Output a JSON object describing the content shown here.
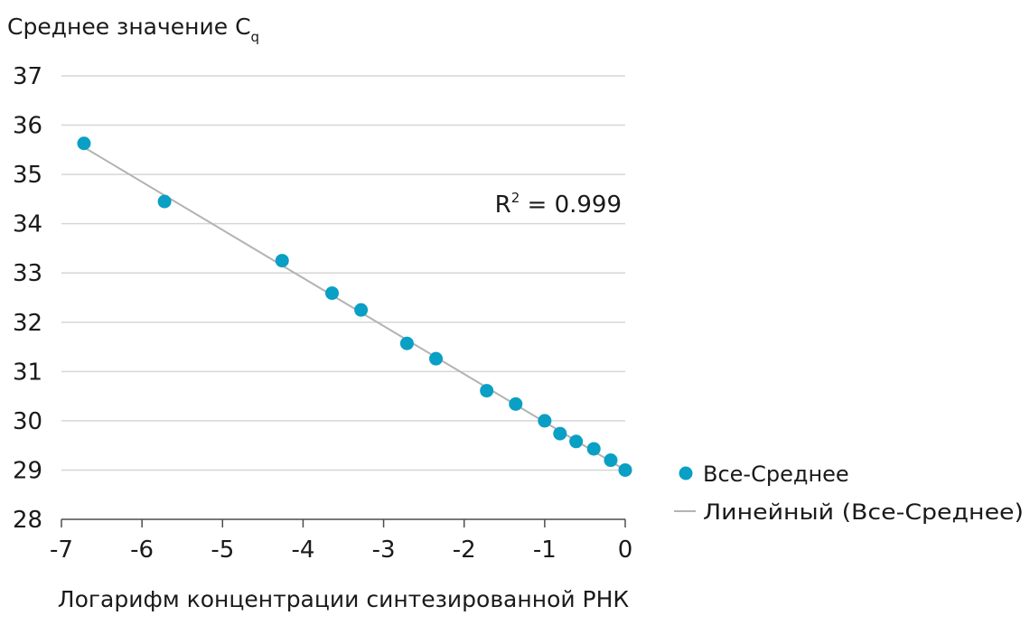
{
  "chart_data": {
    "type": "scatter",
    "ylabel": "Среднее значение C",
    "ylabel_subscript": "q",
    "xlabel": "Логарифм концентрации синтезированной РНК",
    "xlim": [
      -7,
      0
    ],
    "ylim": [
      28,
      37
    ],
    "xticks": [
      -7,
      -6,
      -5,
      -4,
      -3,
      -2,
      -1,
      0
    ],
    "yticks": [
      28,
      29,
      30,
      31,
      32,
      33,
      34,
      35,
      36,
      37
    ],
    "xtick_labels": [
      "-7",
      "-6",
      "-5",
      "-4",
      "-3",
      "-2",
      "-1",
      "0"
    ],
    "ytick_labels": [
      "28",
      "29",
      "30",
      "31",
      "32",
      "33",
      "34",
      "35",
      "36",
      "37"
    ],
    "grid": "horizontal",
    "annotation": {
      "base": "R",
      "sup": "2",
      "rest": " = 0.999"
    },
    "series": [
      {
        "name": "Все-Среднее",
        "kind": "points",
        "color": "#0a9fc4",
        "x": [
          -6.72,
          -5.72,
          -4.26,
          -3.64,
          -3.28,
          -2.71,
          -2.35,
          -1.72,
          -1.36,
          -1.0,
          -0.81,
          -0.61,
          -0.39,
          -0.18,
          0.0
        ],
        "y": [
          35.63,
          34.45,
          33.25,
          32.59,
          32.25,
          31.57,
          31.26,
          30.61,
          30.34,
          30.0,
          29.74,
          29.58,
          29.43,
          29.2,
          29.0
        ]
      },
      {
        "name": "Линейный (Все-Среднее)",
        "kind": "trendline",
        "color": "#b3b3b3",
        "x": [
          -6.72,
          0.0
        ],
        "y": [
          35.55,
          29.0
        ]
      }
    ],
    "legend_position": "right"
  }
}
